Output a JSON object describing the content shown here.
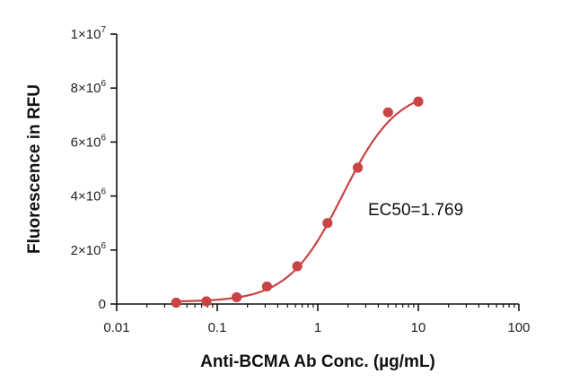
{
  "chart_data": {
    "type": "scatter",
    "xlabel": "Anti-BCMA Ab Conc. (µg/mL)",
    "ylabel": "Fluorescence in RFU",
    "xscale": "log",
    "xlim": [
      0.01,
      100
    ],
    "ylim": [
      0,
      10000000
    ],
    "x_ticks": [
      0.01,
      0.1,
      1,
      10,
      100
    ],
    "x_tick_labels": [
      "0.01",
      "0.1",
      "1",
      "10",
      "100"
    ],
    "y_ticks": [
      0,
      2000000,
      4000000,
      6000000,
      8000000,
      10000000
    ],
    "y_tick_labels": [
      {
        "base": "0",
        "exp": ""
      },
      {
        "base": "2×10",
        "exp": "6"
      },
      {
        "base": "4×10",
        "exp": "6"
      },
      {
        "base": "6×10",
        "exp": "6"
      },
      {
        "base": "8×10",
        "exp": "6"
      },
      {
        "base": "1×10",
        "exp": "7"
      }
    ],
    "grid": false,
    "series": [
      {
        "x": [
          0.039,
          0.078,
          0.156,
          0.3125,
          0.625,
          1.25,
          2.5,
          5,
          10
        ],
        "y": [
          50000,
          100000,
          250000,
          650000,
          1400000,
          3000000,
          5050000,
          7100000,
          7500000
        ],
        "color": "#c94444",
        "fit": {
          "model": "4PL",
          "bottom": 80000,
          "top": 8000000,
          "ec50": 1.769,
          "hill": 1.6
        }
      }
    ],
    "annotations": [
      {
        "text": "EC50=1.769"
      }
    ]
  }
}
